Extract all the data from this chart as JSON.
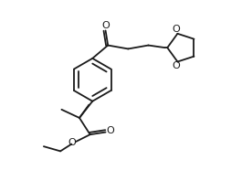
{
  "bg_color": "#ffffff",
  "line_color": "#1a1a1a",
  "line_width": 1.3,
  "fig_width": 2.65,
  "fig_height": 1.98,
  "dpi": 100,
  "xlim": [
    0,
    10
  ],
  "ylim": [
    0,
    7.5
  ]
}
